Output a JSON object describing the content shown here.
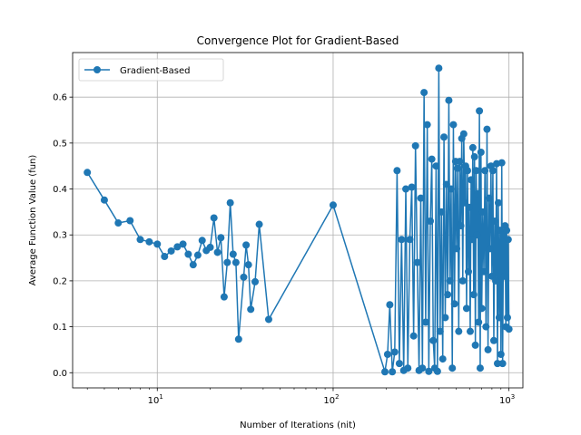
{
  "chart_data": {
    "type": "line",
    "title": "Convergence Plot for Gradient-Based",
    "xlabel": "Number of Iterations (nit)",
    "ylabel": "Average Function Value (fun)",
    "xscale": "log",
    "xlim": [
      3.3,
      1200
    ],
    "ylim": [
      -0.033,
      0.697
    ],
    "x_ticks": [
      {
        "value": 10,
        "base": "10",
        "exp": "1"
      },
      {
        "value": 100,
        "base": "10",
        "exp": "2"
      },
      {
        "value": 1000,
        "base": "10",
        "exp": "3"
      }
    ],
    "y_ticks": [
      0.0,
      0.1,
      0.2,
      0.3,
      0.4,
      0.5,
      0.6
    ],
    "grid": true,
    "legend": {
      "placement": "top-left"
    },
    "color": "#1f77b4",
    "series": [
      {
        "name": "Gradient-Based",
        "x": [
          4,
          5,
          6,
          7,
          8,
          9,
          10,
          11,
          12,
          13,
          14,
          15,
          16,
          17,
          18,
          19,
          20,
          21,
          22,
          23,
          24,
          25,
          26,
          27,
          28,
          29,
          31,
          32,
          33,
          34,
          36,
          38,
          43,
          100,
          197,
          204,
          210,
          217,
          224,
          231,
          238,
          245,
          252,
          259,
          266,
          273,
          280,
          287,
          294,
          301,
          308,
          315,
          322,
          329,
          336,
          343,
          350,
          357,
          364,
          371,
          378,
          385,
          392,
          399,
          406,
          413,
          420,
          427,
          434,
          441,
          448,
          455,
          462,
          469,
          476,
          483,
          490,
          497,
          504,
          511,
          518,
          525,
          532,
          539,
          546,
          553,
          560,
          567,
          574,
          581,
          588,
          595,
          602,
          609,
          616,
          623,
          630,
          637,
          644,
          651,
          658,
          665,
          672,
          679,
          686,
          693,
          700,
          710,
          720,
          730,
          740,
          750,
          760,
          770,
          780,
          790,
          800,
          810,
          820,
          830,
          840,
          850,
          860,
          870,
          880,
          890,
          900,
          910,
          920,
          930,
          940,
          950,
          960,
          970,
          980,
          990,
          1000
        ],
        "y": [
          0.436,
          0.376,
          0.326,
          0.331,
          0.29,
          0.285,
          0.28,
          0.253,
          0.265,
          0.274,
          0.28,
          0.258,
          0.235,
          0.256,
          0.288,
          0.266,
          0.273,
          0.337,
          0.262,
          0.294,
          0.165,
          0.24,
          0.37,
          0.258,
          0.24,
          0.073,
          0.208,
          0.278,
          0.235,
          0.138,
          0.198,
          0.323,
          0.116,
          0.365,
          0.002,
          0.04,
          0.148,
          0.002,
          0.045,
          0.44,
          0.02,
          0.29,
          0.005,
          0.4,
          0.01,
          0.29,
          0.404,
          0.08,
          0.494,
          0.24,
          0.005,
          0.38,
          0.01,
          0.61,
          0.11,
          0.54,
          0.003,
          0.33,
          0.465,
          0.07,
          0.01,
          0.45,
          0.003,
          0.663,
          0.09,
          0.35,
          0.03,
          0.513,
          0.12,
          0.41,
          0.17,
          0.593,
          0.2,
          0.4,
          0.01,
          0.54,
          0.15,
          0.46,
          0.27,
          0.445,
          0.09,
          0.46,
          0.32,
          0.51,
          0.2,
          0.52,
          0.37,
          0.45,
          0.14,
          0.44,
          0.22,
          0.36,
          0.09,
          0.42,
          0.29,
          0.49,
          0.17,
          0.47,
          0.06,
          0.44,
          0.3,
          0.39,
          0.11,
          0.57,
          0.01,
          0.48,
          0.14,
          0.35,
          0.22,
          0.44,
          0.1,
          0.53,
          0.05,
          0.38,
          0.27,
          0.45,
          0.21,
          0.44,
          0.07,
          0.33,
          0.2,
          0.455,
          0.02,
          0.37,
          0.12,
          0.31,
          0.04,
          0.457,
          0.02,
          0.3,
          0.21,
          0.32,
          0.1,
          0.31,
          0.12,
          0.29,
          0.095
        ]
      }
    ]
  }
}
